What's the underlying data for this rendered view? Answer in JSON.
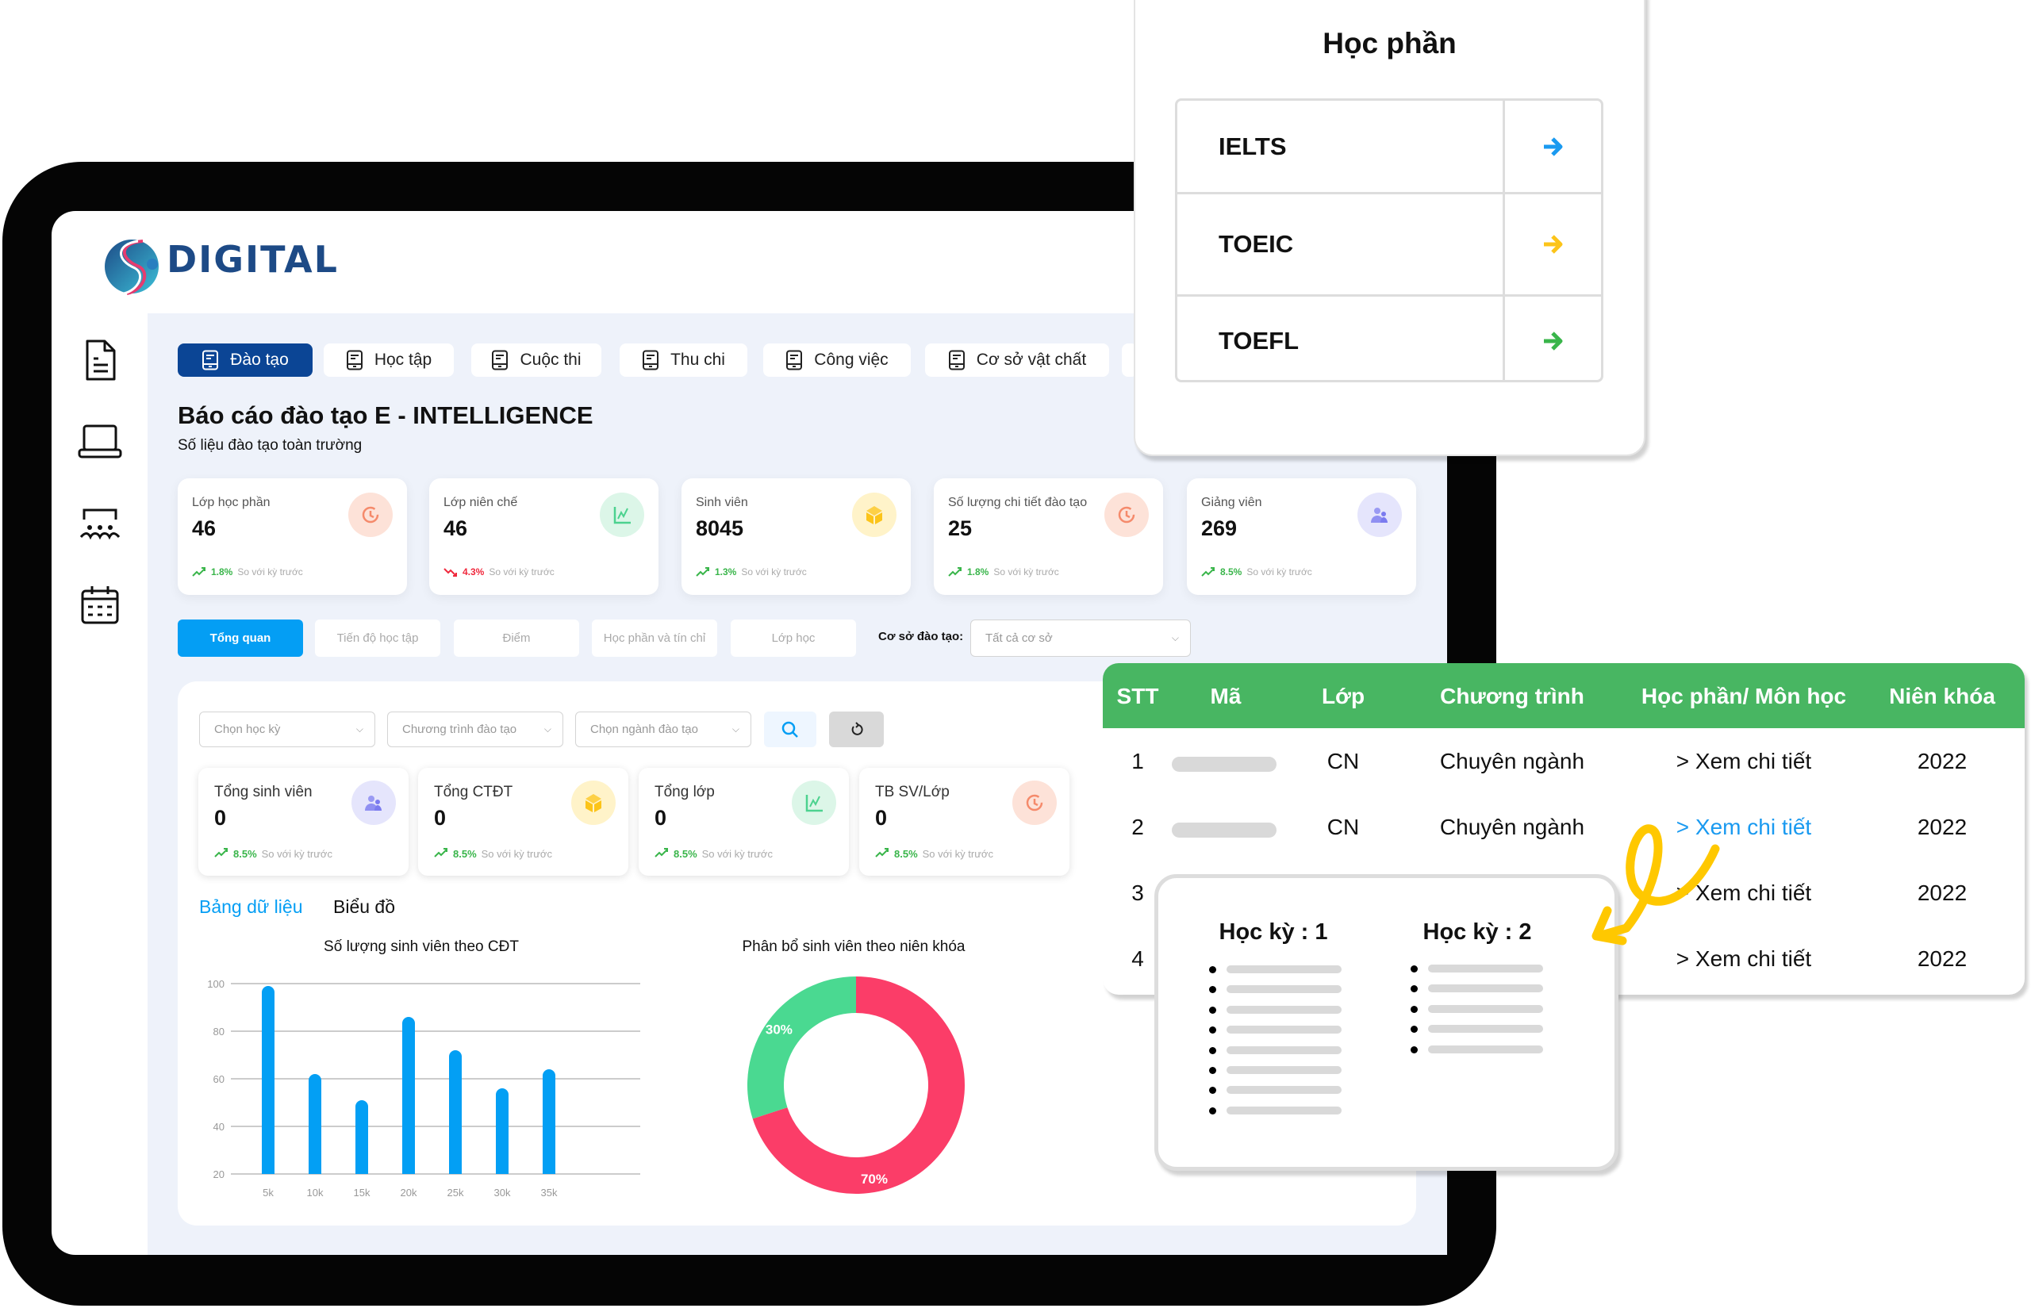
{
  "brand": {
    "name": "DIGITAL"
  },
  "sidebar": {
    "items": [
      {
        "icon": "document-icon"
      },
      {
        "icon": "laptop-icon"
      },
      {
        "icon": "group-icon"
      },
      {
        "icon": "calendar-icon"
      }
    ]
  },
  "tabs": [
    {
      "label": "Đào tạo",
      "active": true
    },
    {
      "label": "Học tập"
    },
    {
      "label": "Cuộc thi"
    },
    {
      "label": "Thu chi"
    },
    {
      "label": "Công việc"
    },
    {
      "label": "Cơ sở vật chất"
    }
  ],
  "header": {
    "title": "Báo cáo đào tạo E - INTELLIGENCE",
    "subtitle": "Số liệu đào tạo toàn trường"
  },
  "stats": [
    {
      "label": "Lớp học phần",
      "value": "46",
      "change": "1.8%",
      "trend": "up",
      "compare": "So với kỳ trước",
      "icon": "history-icon",
      "color": "#f58a6b",
      "bg": "#fde2d8"
    },
    {
      "label": "Lớp niên chế",
      "value": "46",
      "change": "4.3%",
      "trend": "down",
      "compare": "So với kỳ trước",
      "icon": "chart-line-icon",
      "color": "#4cd28f",
      "bg": "#dcf6e8"
    },
    {
      "label": "Sinh viên",
      "value": "8045",
      "change": "1.3%",
      "trend": "up",
      "compare": "So với kỳ trước",
      "icon": "cube-icon",
      "color": "#fcc419",
      "bg": "#fff3c9"
    },
    {
      "label": "Số lượng chi tiết đào tạo",
      "value": "25",
      "change": "1.8%",
      "trend": "up",
      "compare": "So với kỳ trước",
      "icon": "history-icon",
      "color": "#f58a6b",
      "bg": "#fde2d8"
    },
    {
      "label": "Giảng viên",
      "value": "269",
      "change": "8.5%",
      "trend": "up",
      "compare": "So với kỳ trước",
      "icon": "users-icon",
      "color": "#7b7bef",
      "bg": "#e5e5fc"
    }
  ],
  "subtabs": [
    {
      "label": "Tổng quan",
      "active": true
    },
    {
      "label": "Tiến độ học tập"
    },
    {
      "label": "Điểm"
    },
    {
      "label": "Học phần và tín chỉ"
    },
    {
      "label": "Lớp học"
    }
  ],
  "campus": {
    "label": "Cơ sở đào tạo:",
    "placeholder": "Tất cả cơ sở"
  },
  "filters": [
    {
      "placeholder": "Chọn học kỳ"
    },
    {
      "placeholder": "Chương trình đào tạo"
    },
    {
      "placeholder": "Chọn ngành đào tạo"
    }
  ],
  "summary": [
    {
      "label": "Tổng sinh viên",
      "value": "0",
      "change": "8.5%",
      "compare": "So với kỳ trước",
      "icon": "users-icon",
      "color": "#7b7bef",
      "bg": "#e5e5fc"
    },
    {
      "label": "Tổng CTĐT",
      "value": "0",
      "change": "8.5%",
      "compare": "So với kỳ trước",
      "icon": "cube-icon",
      "color": "#fcc419",
      "bg": "#fff3c9"
    },
    {
      "label": "Tổng lớp",
      "value": "0",
      "change": "8.5%",
      "compare": "So với kỳ trước",
      "icon": "chart-line-icon",
      "color": "#4cd28f",
      "bg": "#dcf6e8"
    },
    {
      "label": "TB SV/Lớp",
      "value": "0",
      "change": "8.5%",
      "compare": "So với kỳ trước",
      "icon": "history-icon",
      "color": "#f58a6b",
      "bg": "#fde2d8"
    }
  ],
  "view_tabs": {
    "table": "Bảng dữ liệu",
    "chart": "Biểu đồ"
  },
  "chart_data": [
    {
      "type": "bar",
      "title": "Số lượng sinh viên theo CĐT",
      "categories": [
        "5k",
        "10k",
        "15k",
        "20k",
        "25k",
        "30k",
        "35k"
      ],
      "values": [
        99,
        62,
        51,
        86,
        72,
        56,
        64
      ],
      "ylim": [
        20,
        100
      ],
      "yticks": [
        20,
        40,
        60,
        80,
        100
      ],
      "grid": true,
      "color": "#039ff4"
    },
    {
      "type": "pie",
      "title": "Phân bổ sinh viên theo niên khóa",
      "donut": true,
      "slices": [
        {
          "label": "70%",
          "value": 70,
          "color": "#fb3d68"
        },
        {
          "label": "30%",
          "value": 30,
          "color": "#4ad991"
        }
      ]
    }
  ],
  "hoc_phan": {
    "title": "Học phần",
    "items": [
      {
        "label": "IELTS",
        "color": "#1a9af0"
      },
      {
        "label": "TOEIC",
        "color": "#fcc419"
      },
      {
        "label": "TOEFL",
        "color": "#39b54a"
      }
    ]
  },
  "table": {
    "headers": [
      "STT",
      "Mã",
      "Lớp",
      "Chương trình",
      "Học phần/ Môn học",
      "Niên khóa"
    ],
    "rows": [
      {
        "stt": "1",
        "lop": "CN",
        "chuong_trinh": "Chuyên ngành",
        "link": "> Xem chi tiết",
        "nien_khoa": "2022"
      },
      {
        "stt": "2",
        "lop": "CN",
        "chuong_trinh": "Chuyên ngành",
        "link": "> Xem chi tiết",
        "nien_khoa": "2022",
        "highlight": true
      },
      {
        "stt": "3",
        "lop": "",
        "chuong_trinh": "",
        "link": "> Xem chi tiết",
        "nien_khoa": "2022"
      },
      {
        "stt": "4",
        "lop": "",
        "chuong_trinh": "",
        "link": "> Xem chi tiết",
        "nien_khoa": "2022"
      }
    ],
    "header_color": "#48b662",
    "link_color": "#1a9af0"
  },
  "hoc_ky": {
    "sem1": {
      "title": "Học kỳ : 1",
      "items": 8
    },
    "sem2": {
      "title": "Học kỳ : 2",
      "items": 5
    }
  }
}
